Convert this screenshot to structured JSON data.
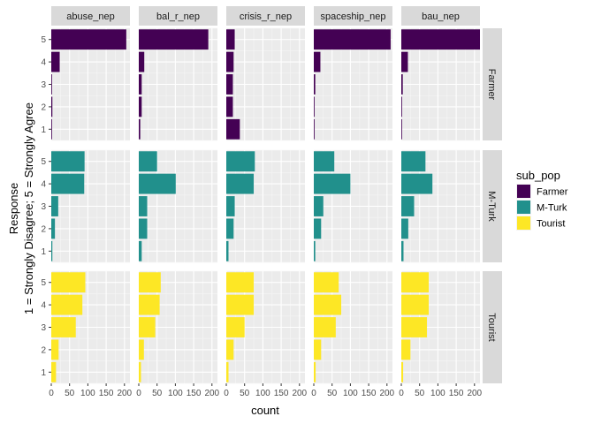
{
  "chart_data": {
    "type": "bar",
    "orientation": "horizontal",
    "facet_columns": [
      "abuse_nep",
      "bal_r_nep",
      "crisis_r_nep",
      "spaceship_nep",
      "bau_nep"
    ],
    "facet_rows": [
      "Farmer",
      "M-Turk",
      "Tourist"
    ],
    "categories": [
      "1",
      "2",
      "3",
      "4",
      "5"
    ],
    "xlabel": "count",
    "ylabel_lines": [
      "Response",
      "1 = Strongly Disagree; 5 = Strongly Agree"
    ],
    "xlim": [
      0,
      215
    ],
    "x_ticks": [
      0,
      50,
      100,
      150,
      200
    ],
    "x_tick_labels": [
      "0",
      "50",
      "100",
      "150",
      "200"
    ],
    "legend": {
      "title": "sub_pop",
      "position": "right",
      "entries": [
        "Farmer",
        "M-Turk",
        "Tourist"
      ]
    },
    "colors": {
      "Farmer": "#440154",
      "M-Turk": "#21908C",
      "Tourist": "#FDE725"
    },
    "series": [
      {
        "row": "Farmer",
        "column": "abuse_nep",
        "values": [
          2,
          3,
          2,
          23,
          205
        ]
      },
      {
        "row": "Farmer",
        "column": "bal_r_nep",
        "values": [
          4,
          8,
          8,
          15,
          190
        ]
      },
      {
        "row": "Farmer",
        "column": "crisis_r_nep",
        "values": [
          37,
          18,
          18,
          20,
          23
        ]
      },
      {
        "row": "Farmer",
        "column": "spaceship_nep",
        "values": [
          2,
          2,
          4,
          18,
          210
        ]
      },
      {
        "row": "Farmer",
        "column": "bau_nep",
        "values": [
          2,
          2,
          4,
          18,
          215
        ]
      },
      {
        "row": "M-Turk",
        "column": "abuse_nep",
        "values": [
          3,
          10,
          19,
          90,
          91
        ]
      },
      {
        "row": "M-Turk",
        "column": "bal_r_nep",
        "values": [
          8,
          23,
          23,
          101,
          50
        ]
      },
      {
        "row": "M-Turk",
        "column": "crisis_r_nep",
        "values": [
          6,
          20,
          23,
          75,
          78
        ]
      },
      {
        "row": "M-Turk",
        "column": "spaceship_nep",
        "values": [
          4,
          20,
          26,
          100,
          56
        ]
      },
      {
        "row": "M-Turk",
        "column": "bau_nep",
        "values": [
          6,
          19,
          35,
          85,
          66
        ]
      },
      {
        "row": "Tourist",
        "column": "abuse_nep",
        "values": [
          13,
          20,
          67,
          85,
          93
        ]
      },
      {
        "row": "Tourist",
        "column": "bal_r_nep",
        "values": [
          6,
          14,
          45,
          57,
          60
        ]
      },
      {
        "row": "Tourist",
        "column": "crisis_r_nep",
        "values": [
          6,
          20,
          50,
          75,
          75
        ]
      },
      {
        "row": "Tourist",
        "column": "spaceship_nep",
        "values": [
          5,
          20,
          60,
          75,
          68
        ]
      },
      {
        "row": "Tourist",
        "column": "bau_nep",
        "values": [
          5,
          25,
          70,
          75,
          75
        ]
      }
    ]
  }
}
